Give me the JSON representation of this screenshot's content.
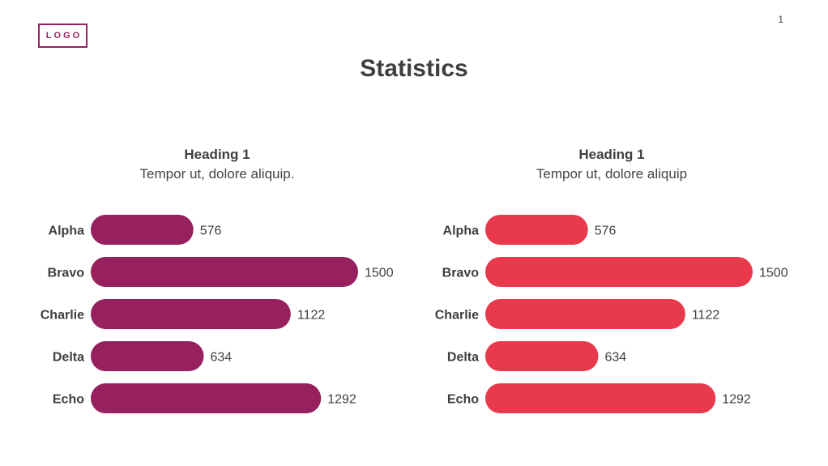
{
  "logo_text": "LOGO",
  "page_number": "1",
  "title": "Statistics",
  "panels": [
    {
      "heading": "Heading 1",
      "subheading": "Tempor ut, dolore aliquip."
    },
    {
      "heading": "Heading 1",
      "subheading": "Tempor ut, dolore aliquip"
    }
  ],
  "chart_data": [
    {
      "type": "bar",
      "orientation": "horizontal",
      "categories": [
        "Alpha",
        "Bravo",
        "Charlie",
        "Delta",
        "Echo"
      ],
      "values": [
        576,
        1500,
        1122,
        634,
        1292
      ],
      "value_labels": [
        "576",
        "1500",
        "1122",
        "634",
        "1292"
      ],
      "color": "#97215f",
      "title": "",
      "xlabel": "",
      "ylabel": "",
      "xlim": [
        0,
        1500
      ],
      "grid": false,
      "legend": "none"
    },
    {
      "type": "bar",
      "orientation": "horizontal",
      "categories": [
        "Alpha",
        "Bravo",
        "Charlie",
        "Delta",
        "Echo"
      ],
      "values": [
        576,
        1500,
        1122,
        634,
        1292
      ],
      "value_labels": [
        "576",
        "1500",
        "1122",
        "634",
        "1292"
      ],
      "color": "#e8394d",
      "title": "",
      "xlabel": "",
      "ylabel": "",
      "xlim": [
        0,
        1500
      ],
      "grid": false,
      "legend": "none"
    }
  ]
}
